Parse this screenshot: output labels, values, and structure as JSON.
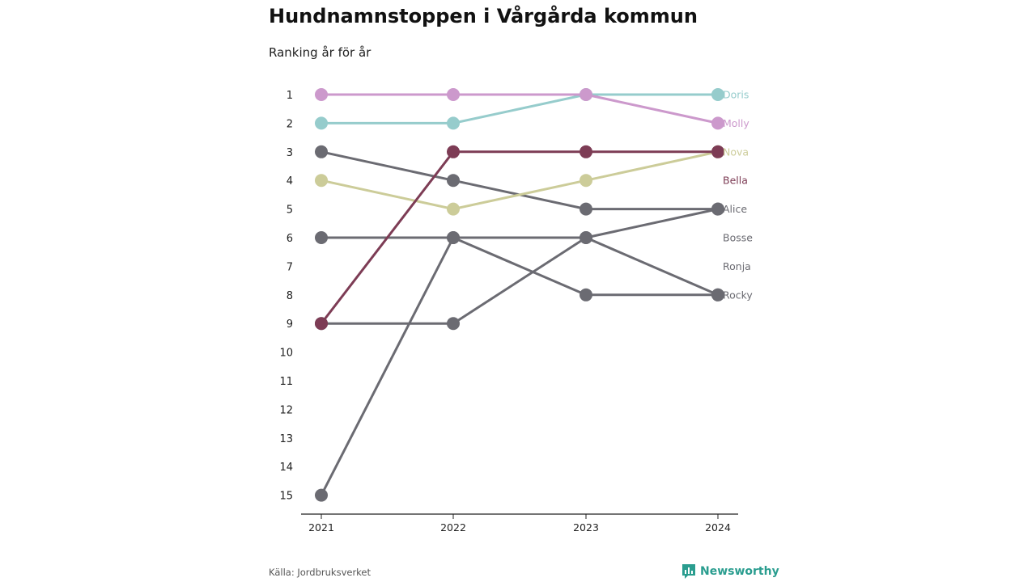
{
  "header": {
    "title": "Hundnamnstoppen i Vårgårda kommun",
    "subtitle": "Ranking år för år"
  },
  "footer": {
    "source": "Källa: Jordbruksverket",
    "brand": "Newsworthy"
  },
  "colors": {
    "Doris": "#96cccc",
    "Molly": "#cc99cc",
    "Nova": "#cccc99",
    "Bella": "#7d3c55",
    "default": "#6b6b72",
    "brand": "#2a9d8f",
    "axis": "#222222"
  },
  "chart_data": {
    "type": "line",
    "title": "Hundnamnstoppen i Vårgårda kommun",
    "subtitle": "Ranking år för år",
    "x": [
      "2021",
      "2022",
      "2023",
      "2024"
    ],
    "ylim": [
      1,
      15
    ],
    "y_reversed": true,
    "y_ticks": [
      1,
      2,
      3,
      4,
      5,
      6,
      7,
      8,
      9,
      10,
      11,
      12,
      13,
      14,
      15
    ],
    "series": [
      {
        "name": "Doris",
        "values": [
          2,
          2,
          1,
          1
        ],
        "label_rank": 1
      },
      {
        "name": "Molly",
        "values": [
          1,
          1,
          1,
          2
        ],
        "label_rank": 2
      },
      {
        "name": "Nova",
        "values": [
          4,
          5,
          4,
          3
        ],
        "label_rank": 3
      },
      {
        "name": "Bella",
        "values": [
          9,
          3,
          3,
          3
        ],
        "label_rank": 4
      },
      {
        "name": "Alice",
        "values": [
          3,
          4,
          5,
          5
        ],
        "label_rank": 5
      },
      {
        "name": "Bosse",
        "values": [
          15,
          6,
          6,
          5
        ],
        "label_rank": 6
      },
      {
        "name": "Ronja",
        "values": [
          9,
          9,
          6,
          8
        ],
        "label_rank": 7
      },
      {
        "name": "Rocky",
        "values": [
          6,
          6,
          8,
          8
        ],
        "label_rank": 8
      }
    ]
  }
}
